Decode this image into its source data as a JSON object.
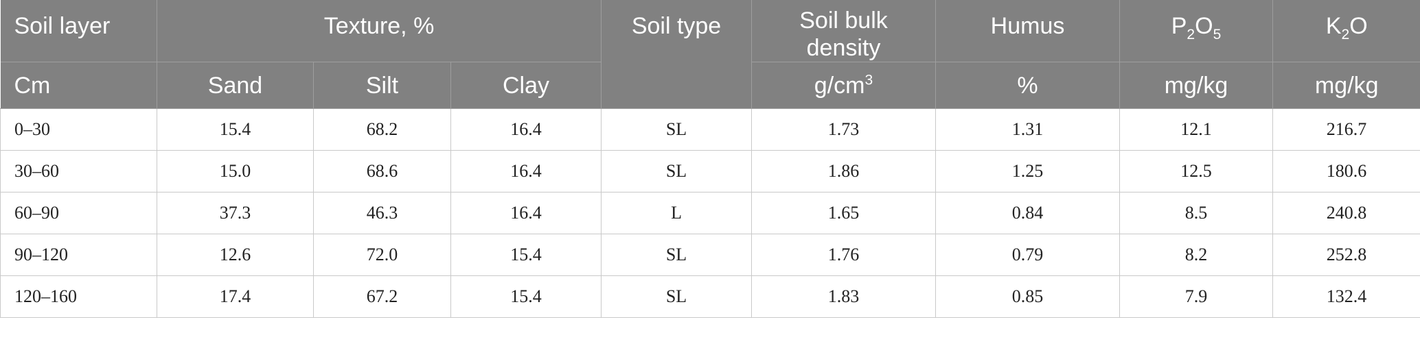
{
  "table": {
    "header_row1": {
      "soil_layer": "Soil layer",
      "texture": "Texture, %",
      "soil_type": "Soil type",
      "bulk_density": "Soil bulk density",
      "humus": "Humus",
      "p2o5": {
        "base1": "P",
        "sub1": "2",
        "base2": "O",
        "sub2": "5"
      },
      "k2o": {
        "base1": "K",
        "sub1": "2",
        "base2": "O"
      }
    },
    "header_row2": {
      "cm": "Cm",
      "sand": "Sand",
      "silt": "Silt",
      "clay": "Clay",
      "bulk_density_unit": {
        "base": "g/cm",
        "sup": "3"
      },
      "humus_unit": "%",
      "p2o5_unit": "mg/kg",
      "k2o_unit": "mg/kg"
    },
    "rows": [
      {
        "layer": "0–30",
        "sand": "15.4",
        "silt": "68.2",
        "clay": "16.4",
        "type": "SL",
        "density": "1.73",
        "humus": "1.31",
        "p2o5": "12.1",
        "k2o": "216.7"
      },
      {
        "layer": "30–60",
        "sand": "15.0",
        "silt": "68.6",
        "clay": "16.4",
        "type": "SL",
        "density": "1.86",
        "humus": "1.25",
        "p2o5": "12.5",
        "k2o": "180.6"
      },
      {
        "layer": "60–90",
        "sand": "37.3",
        "silt": "46.3",
        "clay": "16.4",
        "type": "L",
        "density": "1.65",
        "humus": "0.84",
        "p2o5": "8.5",
        "k2o": "240.8"
      },
      {
        "layer": "90–120",
        "sand": "12.6",
        "silt": "72.0",
        "clay": "15.4",
        "type": "SL",
        "density": "1.76",
        "humus": "0.79",
        "p2o5": "8.2",
        "k2o": "252.8"
      },
      {
        "layer": "120–160",
        "sand": "17.4",
        "silt": "67.2",
        "clay": "15.4",
        "type": "SL",
        "density": "1.83",
        "humus": "0.85",
        "p2o5": "7.9",
        "k2o": "132.4"
      }
    ]
  }
}
